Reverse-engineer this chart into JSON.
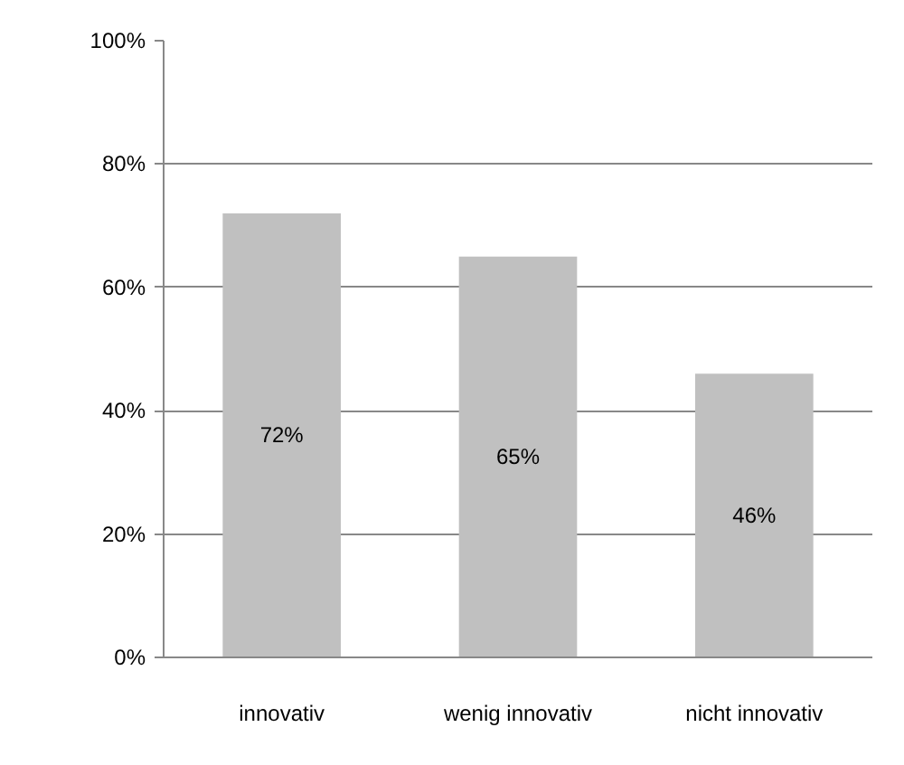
{
  "chart_data": {
    "type": "bar",
    "categories": [
      "innovativ",
      "wenig innovativ",
      "nicht innovativ"
    ],
    "values": [
      72,
      65,
      46
    ],
    "color": "#c0c0c0",
    "value_labels": [
      "72%",
      "65%",
      "46%"
    ],
    "ylim": [
      0,
      100
    ],
    "yticks": [
      {
        "value": 0,
        "label": "0%"
      },
      {
        "value": 20,
        "label": "20%"
      },
      {
        "value": 40,
        "label": "40%"
      },
      {
        "value": 60,
        "label": "60%"
      },
      {
        "value": 80,
        "label": "80%"
      },
      {
        "value": 100,
        "label": "100%"
      }
    ],
    "grid": "y"
  }
}
